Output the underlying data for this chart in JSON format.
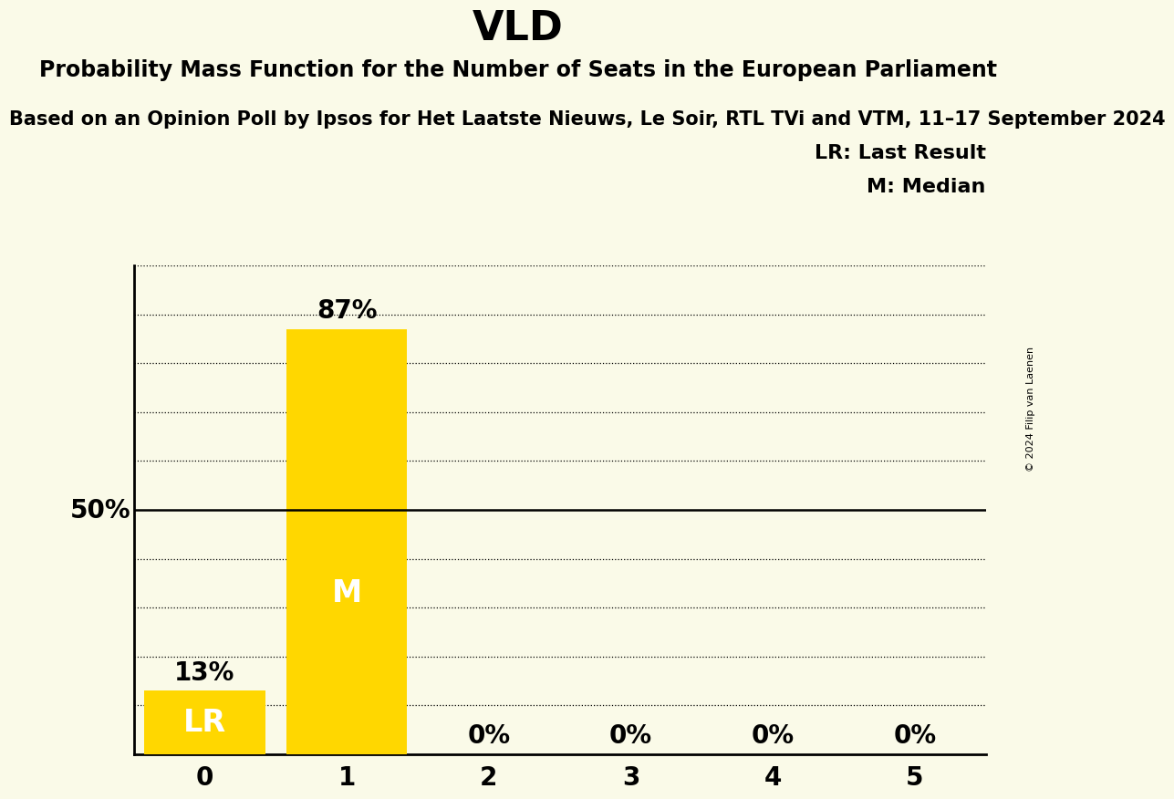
{
  "title": "VLD",
  "subtitle1": "Probability Mass Function for the Number of Seats in the European Parliament",
  "subtitle2": "Based on an Opinion Poll by Ipsos for Het Laatste Nieuws, Le Soir, RTL TVi and VTM, 11–17 September 2024",
  "copyright": "© 2024 Filip van Laenen",
  "background_color": "#FAFAE8",
  "bar_color": "#FFD700",
  "categories": [
    0,
    1,
    2,
    3,
    4,
    5
  ],
  "values": [
    0.13,
    0.87,
    0.0,
    0.0,
    0.0,
    0.0
  ],
  "median": 1,
  "last_result": 0,
  "ylabel_50": "50%",
  "legend_lr": "LR: Last Result",
  "legend_m": "M: Median",
  "bar_label_color_light": "#FFFFFF",
  "bar_label_color_dark": "#000000",
  "ylim": [
    0,
    1.0
  ],
  "yticks": [
    0.1,
    0.2,
    0.3,
    0.4,
    0.5,
    0.6,
    0.7,
    0.8,
    0.9,
    1.0
  ],
  "title_fontsize": 32,
  "subtitle1_fontsize": 17,
  "subtitle2_fontsize": 15,
  "axis_fontsize": 20,
  "bar_label_fontsize": 20,
  "bar_inner_fontsize": 24,
  "legend_fontsize": 16,
  "copyright_fontsize": 8
}
